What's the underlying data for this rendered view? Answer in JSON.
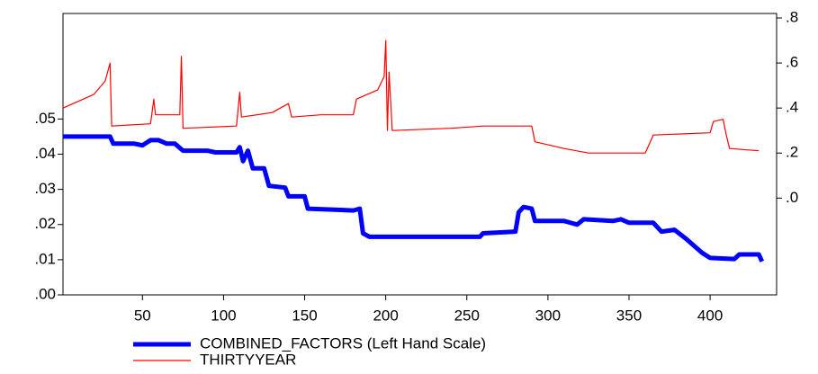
{
  "chart_data": {
    "type": "line",
    "xlim": [
      1,
      441
    ],
    "xticks": [
      50,
      100,
      150,
      200,
      250,
      300,
      350,
      400
    ],
    "ylim": [
      0,
      0.08
    ],
    "yticks": [
      {
        "value": 0,
        "label": ".00"
      },
      {
        "value": 0.01,
        "label": ".01"
      },
      {
        "value": 0.02,
        "label": ".02"
      },
      {
        "value": 0.03,
        "label": ".03"
      },
      {
        "value": 0.04,
        "label": ".04"
      },
      {
        "value": 0.05,
        "label": ".05"
      }
    ],
    "y2lim": [
      -0.43,
      0.82
    ],
    "y2ticks": [
      {
        "value": 0,
        "label": ".0"
      },
      {
        "value": 0.2,
        "label": ".2"
      },
      {
        "value": 0.4,
        "label": ".4"
      },
      {
        "value": 0.6,
        "label": ".6"
      },
      {
        "value": 0.8,
        "label": ".8"
      }
    ],
    "series": [
      {
        "name": "COMBINED_FACTORS (Left Hand Scale)",
        "color": "#0000ff",
        "width": 5,
        "x": [
          1,
          30,
          32,
          45,
          50,
          55,
          60,
          65,
          70,
          75,
          90,
          95,
          108,
          110,
          112,
          115,
          118,
          125,
          128,
          138,
          140,
          150,
          152,
          180,
          184,
          186,
          190,
          250,
          258,
          260,
          280,
          282,
          285,
          290,
          292,
          310,
          318,
          322,
          340,
          345,
          350,
          365,
          370,
          378,
          385,
          395,
          400,
          415,
          418,
          430,
          432
        ],
        "values": [
          0.045,
          0.045,
          0.043,
          0.043,
          0.0425,
          0.044,
          0.044,
          0.043,
          0.043,
          0.041,
          0.041,
          0.0405,
          0.0405,
          0.042,
          0.038,
          0.041,
          0.036,
          0.036,
          0.031,
          0.0305,
          0.028,
          0.028,
          0.0245,
          0.024,
          0.0245,
          0.0175,
          0.0165,
          0.0165,
          0.0165,
          0.0175,
          0.018,
          0.0235,
          0.025,
          0.0245,
          0.021,
          0.021,
          0.02,
          0.0215,
          0.021,
          0.0215,
          0.0205,
          0.0205,
          0.018,
          0.0185,
          0.016,
          0.012,
          0.0105,
          0.0102,
          0.0115,
          0.0115,
          0.0095
        ]
      },
      {
        "name": "THIRTYYEAR",
        "color": "#ff0000",
        "width": 1.2,
        "axis": "y2",
        "x": [
          1,
          20,
          27,
          30,
          31,
          55,
          57,
          58,
          73,
          74,
          75,
          108,
          110,
          111,
          130,
          140,
          142,
          160,
          180,
          182,
          195,
          199,
          200,
          201,
          202,
          204,
          240,
          260,
          290,
          292,
          310,
          325,
          360,
          365,
          400,
          402,
          408,
          410,
          412,
          430
        ],
        "values": [
          0.4,
          0.46,
          0.52,
          0.6,
          0.32,
          0.33,
          0.44,
          0.37,
          0.37,
          0.63,
          0.31,
          0.32,
          0.47,
          0.36,
          0.38,
          0.42,
          0.36,
          0.37,
          0.37,
          0.44,
          0.48,
          0.54,
          0.7,
          0.3,
          0.56,
          0.3,
          0.31,
          0.32,
          0.32,
          0.25,
          0.22,
          0.2,
          0.2,
          0.28,
          0.29,
          0.34,
          0.35,
          0.28,
          0.22,
          0.21
        ]
      }
    ]
  }
}
